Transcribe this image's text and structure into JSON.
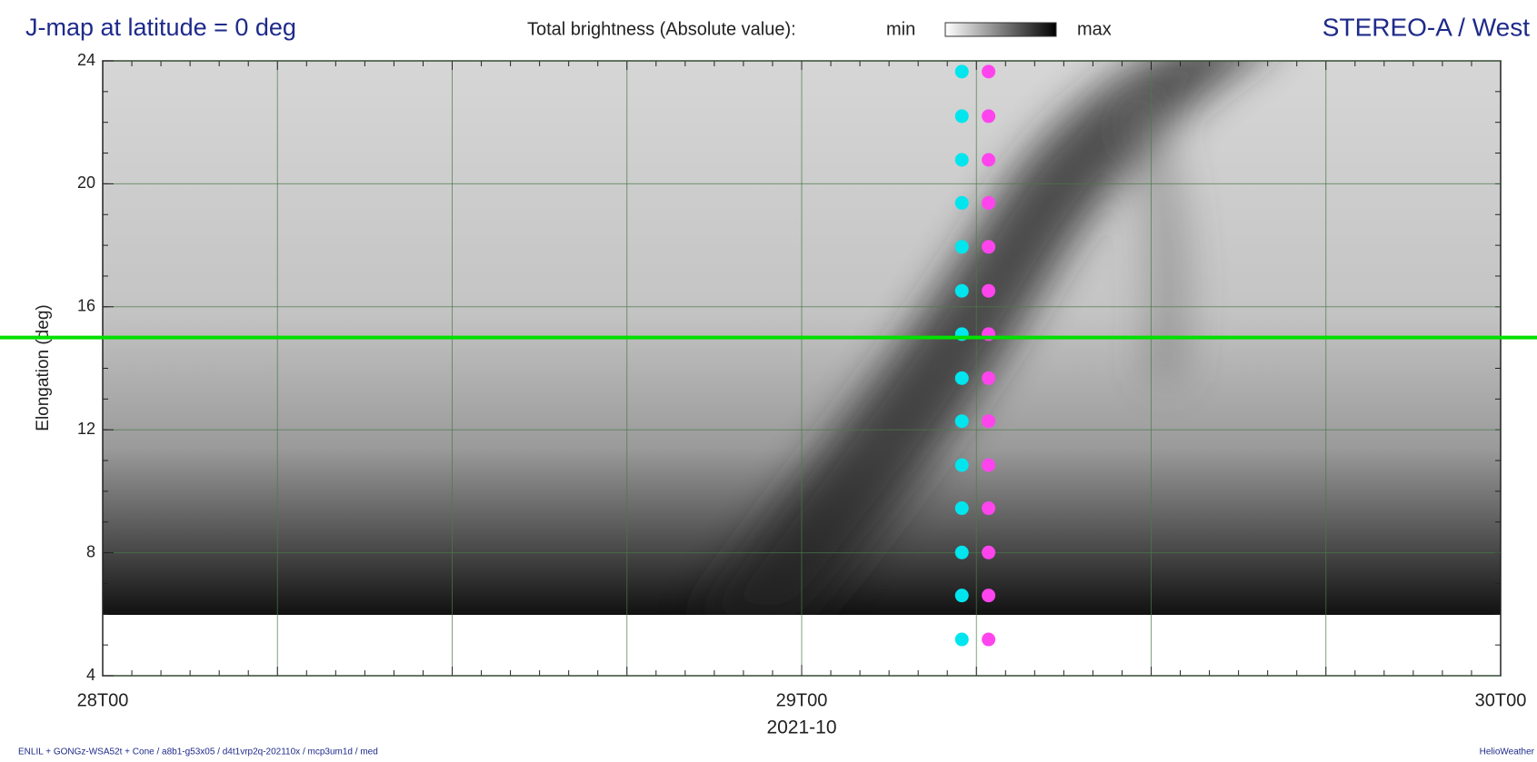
{
  "chart_data": {
    "type": "jmap",
    "title": "J-map at latitude = 0 deg",
    "colorbar_label": "Total brightness (Absolute value):",
    "colorbar_min": "min",
    "colorbar_max": "max",
    "spacecraft": "STEREO-A / West",
    "y_label": "Elongation (deg)",
    "x_label": "2021-10",
    "footer": "ENLIL + GONGz-WSA52t + Cone / a8b1-g53x05 / d4t1vrp2q-202110x / mcp3um1d / med",
    "credit": "HelioWeather",
    "xlim": [
      "2021-10-28T00:00",
      "2021-10-30T00:00"
    ],
    "xticks": [
      {
        "value": "2021-10-28T00:00",
        "label": "28T00"
      },
      {
        "value": "2021-10-29T00:00",
        "label": "29T00"
      },
      {
        "value": "2021-10-30T00:00",
        "label": "30T00"
      }
    ],
    "ylim": [
      4,
      24
    ],
    "yticks": [
      4,
      8,
      12,
      16,
      20,
      24
    ],
    "grid": true,
    "reference_line": 15,
    "reference_color": "#00e000",
    "series": [
      {
        "color": "#00e5ee",
        "x": [
          "2021-10-29T05:30",
          "2021-10-29T05:30",
          "2021-10-29T05:30",
          "2021-10-29T05:30",
          "2021-10-29T05:30",
          "2021-10-29T05:30",
          "2021-10-29T05:30",
          "2021-10-29T05:30",
          "2021-10-29T05:30",
          "2021-10-29T05:30",
          "2021-10-29T05:30",
          "2021-10-29T05:30",
          "2021-10-29T05:30",
          "2021-10-29T05:30"
        ],
        "values": [
          23.65,
          22.2,
          20.78,
          19.38,
          17.95,
          16.52,
          15.11,
          13.68,
          12.28,
          10.85,
          9.45,
          8.01,
          6.61,
          5.18
        ]
      },
      {
        "color": "#ff44ee",
        "x": [
          "2021-10-29T06:25",
          "2021-10-29T06:25",
          "2021-10-29T06:25",
          "2021-10-29T06:25",
          "2021-10-29T06:25",
          "2021-10-29T06:25",
          "2021-10-29T06:25",
          "2021-10-29T06:25",
          "2021-10-29T06:25",
          "2021-10-29T06:25",
          "2021-10-29T06:25",
          "2021-10-29T06:25",
          "2021-10-29T06:25",
          "2021-10-29T06:25"
        ],
        "values": [
          23.65,
          22.2,
          20.78,
          19.38,
          17.95,
          16.52,
          15.11,
          13.68,
          12.28,
          10.85,
          9.45,
          8.01,
          6.61,
          5.18
        ]
      }
    ]
  }
}
